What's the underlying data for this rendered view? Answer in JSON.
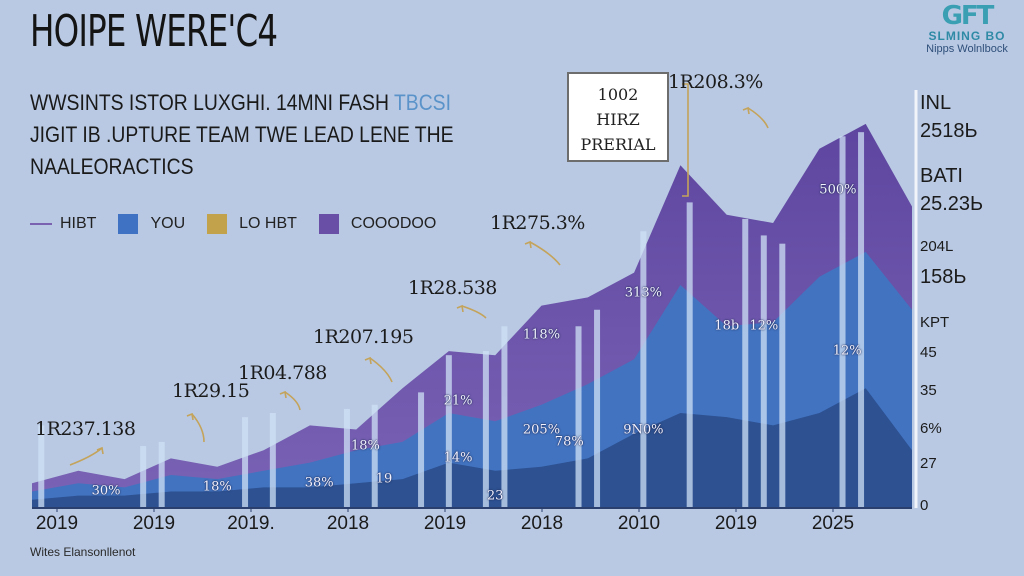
{
  "header": {
    "title": "HOIPE WERE'C4",
    "subtitle_lines": [
      "WWSINTS ISTOR LUXGHI. 14MNI FASH",
      "JIGIT IB .UPTURE TEAM TWE LEAD LENE THE",
      "NAALEORACTICS"
    ],
    "subtitle_highlight": "TBCSI"
  },
  "logo": {
    "mark": "GFT",
    "name": "SLMING BO",
    "tagline": "Nipps Wolnlbock"
  },
  "callout_box": {
    "lines": [
      "1002",
      "HIRZ",
      "PRERIAL"
    ]
  },
  "footer": {
    "text": "Wites Elansonllenot"
  },
  "colors": {
    "background": "#b9c9e3",
    "top_layer": "#6b55a8",
    "mid_layer": "#4273c0",
    "bottom_layer": "#2d5191",
    "hibt_line": "#7a62b0",
    "you": "#3f72c2",
    "lo_hbt": "#c2a24a",
    "cooodoo": "#6a4fa6",
    "arrow": "#c4a35a"
  },
  "chart_data": {
    "type": "area",
    "title": "HOIPE WERE'C4",
    "xlabel": "",
    "ylabel": "",
    "x_tick_labels": [
      "2019",
      "2019",
      "2019.",
      "2018",
      "2019",
      "2018",
      "2010",
      "2019",
      "2025"
    ],
    "x": [
      0,
      0.5,
      1,
      1.5,
      2,
      2.5,
      3,
      3.5,
      4,
      4.5,
      5,
      5.5,
      6,
      6.5,
      7,
      7.5,
      8,
      8.5,
      9,
      9.5
    ],
    "ylim": [
      0,
      100
    ],
    "legend": [
      {
        "name": "HIBT",
        "style": "line",
        "color": "#7a62b0"
      },
      {
        "name": "YOU",
        "style": "swatch",
        "color": "#3f72c2"
      },
      {
        "name": "LO HBT",
        "style": "swatch",
        "color": "#c2a24a"
      },
      {
        "name": "COOODOO",
        "style": "swatch",
        "color": "#6a4fa6"
      }
    ],
    "legend_position": "top-left",
    "series": [
      {
        "name": "COOODOO",
        "values": [
          6,
          9,
          7,
          12,
          10,
          14,
          20,
          19,
          29,
          38,
          37,
          49,
          51,
          57,
          83,
          71,
          69,
          87,
          93,
          73
        ]
      },
      {
        "name": "YOU",
        "values": [
          4,
          6,
          5,
          8,
          7,
          9,
          11,
          14,
          16,
          23,
          21,
          25,
          30,
          36,
          54,
          44,
          45,
          56,
          62,
          48
        ]
      },
      {
        "name": "LO HBT",
        "values": [
          2,
          3,
          3,
          4,
          4,
          5,
          5,
          6,
          7,
          11,
          9,
          10,
          12,
          18,
          23,
          22,
          20,
          23,
          29,
          14
        ]
      }
    ],
    "right_axis_labels": [
      {
        "text": "INL",
        "size": "big"
      },
      {
        "text": "2518Ь",
        "size": "big"
      },
      {
        "text": "BATI",
        "size": "big"
      },
      {
        "text": "25.23Ь",
        "size": "big"
      },
      {
        "text": "204L",
        "size": "small"
      },
      {
        "text": "158Ь",
        "size": "big"
      },
      {
        "text": "KPT",
        "size": "small"
      },
      {
        "text": "45",
        "size": "small"
      },
      {
        "text": "35",
        "size": "small"
      },
      {
        "text": "6%",
        "size": "small"
      },
      {
        "text": "27",
        "size": "small"
      },
      {
        "text": "0",
        "size": "small"
      }
    ],
    "annotations": [
      {
        "text": "1R237.138",
        "at_x": 0.7
      },
      {
        "text": "1R29.15",
        "at_x": 1.8
      },
      {
        "text": "1R04.788",
        "at_x": 3.0
      },
      {
        "text": "1R207.195",
        "at_x": 3.9
      },
      {
        "text": "1R28.538",
        "at_x": 4.8
      },
      {
        "text": "1R275.3%",
        "at_x": 5.6
      },
      {
        "text": "1R208.3%",
        "at_x": 7.6
      }
    ],
    "data_labels": [
      {
        "text": "30%",
        "x": 0.8,
        "y": 4
      },
      {
        "text": "18%",
        "x": 2.0,
        "y": 5
      },
      {
        "text": "38%",
        "x": 3.1,
        "y": 6
      },
      {
        "text": "18%",
        "x": 3.6,
        "y": 15
      },
      {
        "text": "19",
        "x": 3.8,
        "y": 7
      },
      {
        "text": "21%",
        "x": 4.6,
        "y": 26
      },
      {
        "text": "14%",
        "x": 4.6,
        "y": 12
      },
      {
        "text": "23",
        "x": 5.0,
        "y": 3
      },
      {
        "text": "118%",
        "x": 5.5,
        "y": 42
      },
      {
        "text": "205%",
        "x": 5.5,
        "y": 19
      },
      {
        "text": "78%",
        "x": 5.8,
        "y": 16
      },
      {
        "text": "313%",
        "x": 6.6,
        "y": 52
      },
      {
        "text": "9N0%",
        "x": 6.6,
        "y": 19
      },
      {
        "text": "18b",
        "x": 7.5,
        "y": 44
      },
      {
        "text": "12%",
        "x": 7.9,
        "y": 44
      },
      {
        "text": "500%",
        "x": 8.7,
        "y": 77
      },
      {
        "text": "12%",
        "x": 8.8,
        "y": 38
      }
    ]
  }
}
